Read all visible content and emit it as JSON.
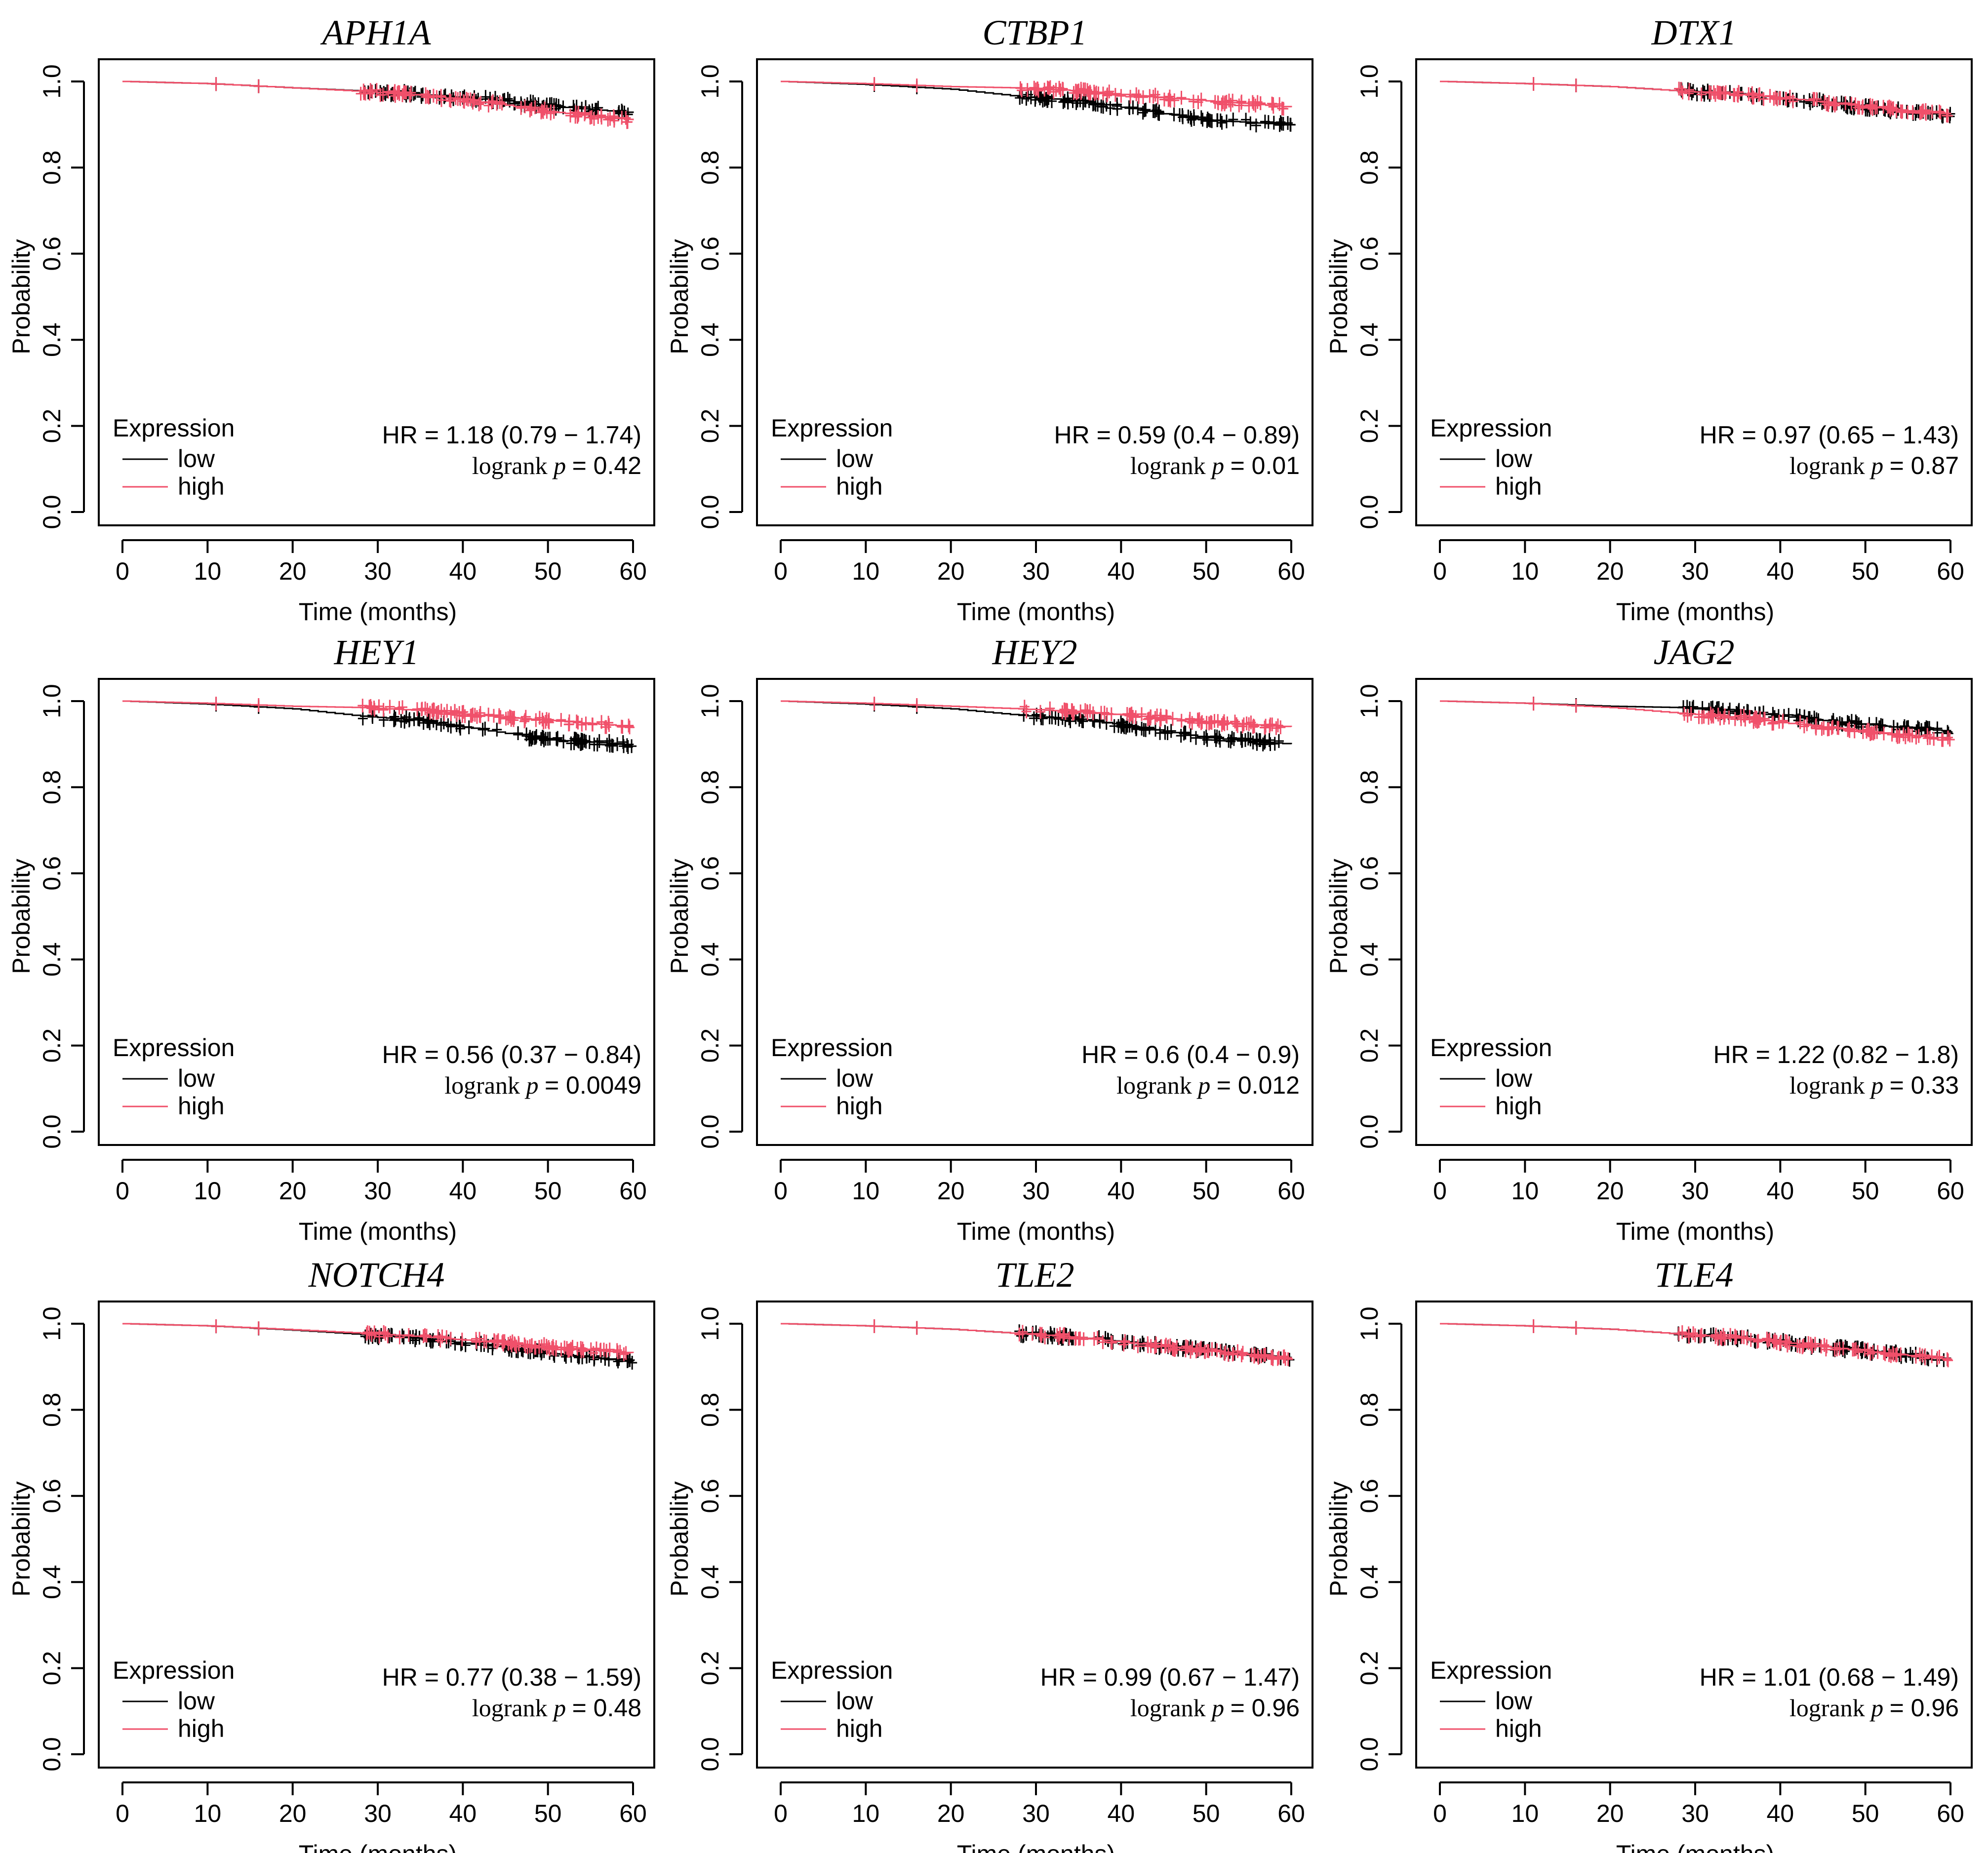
{
  "figure": {
    "colors": {
      "low": "#000000",
      "high": "#f0506a",
      "frame": "#000000",
      "background": "#ffffff"
    }
  },
  "chart_data": [
    {
      "type": "line",
      "title": "APH1A",
      "xlabel": "Time (months)",
      "ylabel": "Probability",
      "xlim": [
        0,
        60
      ],
      "ylim": [
        0,
        1
      ],
      "xticks": [
        "0",
        "10",
        "20",
        "30",
        "40",
        "50",
        "60"
      ],
      "yticks": [
        "0.0",
        "0.2",
        "0.4",
        "0.6",
        "0.8",
        "1.0"
      ],
      "legend": {
        "title": "Expression",
        "entries": [
          "low",
          "high"
        ],
        "position": "bottom-left"
      },
      "stats": {
        "hr_label": "HR = 1.18 (0.79 − 1.74)",
        "logrank_word": "logrank",
        "p_symbol": "p",
        "p_value_text": "= 0.42"
      },
      "series": [
        {
          "name": "low",
          "x": [
            0,
            10,
            20,
            28,
            35,
            40,
            45,
            50,
            55,
            60
          ],
          "values": [
            1.0,
            0.995,
            0.985,
            0.978,
            0.97,
            0.962,
            0.955,
            0.943,
            0.935,
            0.927
          ]
        },
        {
          "name": "high",
          "x": [
            0,
            10,
            20,
            28,
            35,
            40,
            45,
            50,
            55,
            60
          ],
          "values": [
            1.0,
            0.995,
            0.985,
            0.977,
            0.968,
            0.957,
            0.945,
            0.93,
            0.92,
            0.91
          ]
        }
      ]
    },
    {
      "type": "line",
      "title": "CTBP1",
      "xlabel": "Time (months)",
      "ylabel": "Probability",
      "xlim": [
        0,
        60
      ],
      "ylim": [
        0,
        1
      ],
      "xticks": [
        "0",
        "10",
        "20",
        "30",
        "40",
        "50",
        "60"
      ],
      "yticks": [
        "0.0",
        "0.2",
        "0.4",
        "0.6",
        "0.8",
        "1.0"
      ],
      "legend": {
        "title": "Expression",
        "entries": [
          "low",
          "high"
        ],
        "position": "bottom-left"
      },
      "stats": {
        "hr_label": "HR = 0.59 (0.4 − 0.89)",
        "logrank_word": "logrank",
        "p_symbol": "p",
        "p_value_text": "= 0.01"
      },
      "series": [
        {
          "name": "low",
          "x": [
            0,
            10,
            20,
            28,
            35,
            40,
            45,
            50,
            55,
            60
          ],
          "values": [
            1.0,
            0.993,
            0.982,
            0.965,
            0.955,
            0.94,
            0.925,
            0.91,
            0.905,
            0.898
          ]
        },
        {
          "name": "high",
          "x": [
            0,
            10,
            20,
            28,
            35,
            40,
            45,
            50,
            55,
            60
          ],
          "values": [
            1.0,
            0.995,
            0.988,
            0.985,
            0.978,
            0.97,
            0.962,
            0.955,
            0.948,
            0.94
          ]
        }
      ]
    },
    {
      "type": "line",
      "title": "DTX1",
      "xlabel": "Time (months)",
      "ylabel": "Probability",
      "xlim": [
        0,
        60
      ],
      "ylim": [
        0,
        1
      ],
      "xticks": [
        "0",
        "10",
        "20",
        "30",
        "40",
        "50",
        "60"
      ],
      "yticks": [
        "0.0",
        "0.2",
        "0.4",
        "0.6",
        "0.8",
        "1.0"
      ],
      "legend": {
        "title": "Expression",
        "entries": [
          "low",
          "high"
        ],
        "position": "bottom-left"
      },
      "stats": {
        "hr_label": "HR = 0.97 (0.65 − 1.43)",
        "logrank_word": "logrank",
        "p_symbol": "p",
        "p_value_text": "= 0.87"
      },
      "series": [
        {
          "name": "low",
          "x": [
            0,
            10,
            20,
            28,
            35,
            40,
            45,
            50,
            55,
            60
          ],
          "values": [
            1.0,
            0.995,
            0.988,
            0.978,
            0.97,
            0.962,
            0.952,
            0.94,
            0.93,
            0.922
          ]
        },
        {
          "name": "high",
          "x": [
            0,
            10,
            20,
            28,
            35,
            40,
            45,
            50,
            55,
            60
          ],
          "values": [
            1.0,
            0.995,
            0.988,
            0.978,
            0.97,
            0.962,
            0.952,
            0.941,
            0.932,
            0.924
          ]
        }
      ]
    },
    {
      "type": "line",
      "title": "HEY1",
      "xlabel": "Time (months)",
      "ylabel": "Probability",
      "xlim": [
        0,
        60
      ],
      "ylim": [
        0,
        1
      ],
      "xticks": [
        "0",
        "10",
        "20",
        "30",
        "40",
        "50",
        "60"
      ],
      "yticks": [
        "0.0",
        "0.2",
        "0.4",
        "0.6",
        "0.8",
        "1.0"
      ],
      "legend": {
        "title": "Expression",
        "entries": [
          "low",
          "high"
        ],
        "position": "bottom-left"
      },
      "stats": {
        "hr_label": "HR = 0.56 (0.37 − 0.84)",
        "logrank_word": "logrank",
        "p_symbol": "p",
        "p_value_text": "= 0.0049"
      },
      "series": [
        {
          "name": "low",
          "x": [
            0,
            10,
            20,
            28,
            35,
            40,
            45,
            50,
            55,
            60
          ],
          "values": [
            1.0,
            0.993,
            0.982,
            0.965,
            0.955,
            0.94,
            0.925,
            0.91,
            0.905,
            0.898
          ]
        },
        {
          "name": "high",
          "x": [
            0,
            10,
            20,
            28,
            35,
            40,
            45,
            50,
            55,
            60
          ],
          "values": [
            1.0,
            0.995,
            0.988,
            0.985,
            0.978,
            0.97,
            0.962,
            0.955,
            0.948,
            0.94
          ]
        }
      ]
    },
    {
      "type": "line",
      "title": "HEY2",
      "xlabel": "Time (months)",
      "ylabel": "Probability",
      "xlim": [
        0,
        60
      ],
      "ylim": [
        0,
        1
      ],
      "xticks": [
        "0",
        "10",
        "20",
        "30",
        "40",
        "50",
        "60"
      ],
      "yticks": [
        "0.0",
        "0.2",
        "0.4",
        "0.6",
        "0.8",
        "1.0"
      ],
      "legend": {
        "title": "Expression",
        "entries": [
          "low",
          "high"
        ],
        "position": "bottom-left"
      },
      "stats": {
        "hr_label": "HR = 0.6 (0.4 − 0.9)",
        "logrank_word": "logrank",
        "p_symbol": "p",
        "p_value_text": "= 0.012"
      },
      "series": [
        {
          "name": "low",
          "x": [
            0,
            10,
            20,
            28,
            35,
            40,
            45,
            50,
            55,
            60
          ],
          "values": [
            1.0,
            0.993,
            0.982,
            0.967,
            0.958,
            0.945,
            0.93,
            0.915,
            0.907,
            0.9
          ]
        },
        {
          "name": "high",
          "x": [
            0,
            10,
            20,
            28,
            35,
            40,
            45,
            50,
            55,
            60
          ],
          "values": [
            1.0,
            0.995,
            0.988,
            0.982,
            0.975,
            0.968,
            0.96,
            0.952,
            0.946,
            0.94
          ]
        }
      ]
    },
    {
      "type": "line",
      "title": "JAG2",
      "xlabel": "Time (months)",
      "ylabel": "Probability",
      "xlim": [
        0,
        60
      ],
      "ylim": [
        0,
        1
      ],
      "xticks": [
        "0",
        "10",
        "20",
        "30",
        "40",
        "50",
        "60"
      ],
      "yticks": [
        "0.0",
        "0.2",
        "0.4",
        "0.6",
        "0.8",
        "1.0"
      ],
      "legend": {
        "title": "Expression",
        "entries": [
          "low",
          "high"
        ],
        "position": "bottom-left"
      },
      "stats": {
        "hr_label": "HR = 1.22 (0.82 − 1.8)",
        "logrank_word": "logrank",
        "p_symbol": "p",
        "p_value_text": "= 0.33"
      },
      "series": [
        {
          "name": "low",
          "x": [
            0,
            10,
            20,
            28,
            35,
            40,
            45,
            50,
            55,
            60
          ],
          "values": [
            1.0,
            0.995,
            0.988,
            0.985,
            0.975,
            0.965,
            0.955,
            0.945,
            0.937,
            0.93
          ]
        },
        {
          "name": "high",
          "x": [
            0,
            10,
            20,
            28,
            35,
            40,
            45,
            50,
            55,
            60
          ],
          "values": [
            1.0,
            0.995,
            0.985,
            0.972,
            0.962,
            0.95,
            0.94,
            0.93,
            0.92,
            0.912
          ]
        }
      ]
    },
    {
      "type": "line",
      "title": "NOTCH4",
      "xlabel": "Time (months)",
      "ylabel": "Probability",
      "xlim": [
        0,
        60
      ],
      "ylim": [
        0,
        1
      ],
      "xticks": [
        "0",
        "10",
        "20",
        "30",
        "40",
        "50",
        "60"
      ],
      "yticks": [
        "0.0",
        "0.2",
        "0.4",
        "0.6",
        "0.8",
        "1.0"
      ],
      "legend": {
        "title": "Expression",
        "entries": [
          "low",
          "high"
        ],
        "position": "bottom-left"
      },
      "stats": {
        "hr_label": "HR = 0.77 (0.38 − 1.59)",
        "logrank_word": "logrank",
        "p_symbol": "p",
        "p_value_text": "= 0.48"
      },
      "series": [
        {
          "name": "low",
          "x": [
            0,
            10,
            20,
            28,
            35,
            40,
            45,
            50,
            55,
            60
          ],
          "values": [
            1.0,
            0.995,
            0.985,
            0.975,
            0.965,
            0.955,
            0.945,
            0.932,
            0.922,
            0.912
          ]
        },
        {
          "name": "high",
          "x": [
            0,
            10,
            20,
            28,
            35,
            40,
            45,
            50,
            55,
            60
          ],
          "values": [
            1.0,
            0.995,
            0.986,
            0.978,
            0.97,
            0.962,
            0.955,
            0.946,
            0.938,
            0.932
          ]
        }
      ]
    },
    {
      "type": "line",
      "title": "TLE2",
      "xlabel": "Time (months)",
      "ylabel": "Probability",
      "xlim": [
        0,
        60
      ],
      "ylim": [
        0,
        1
      ],
      "xticks": [
        "0",
        "10",
        "20",
        "30",
        "40",
        "50",
        "60"
      ],
      "yticks": [
        "0.0",
        "0.2",
        "0.4",
        "0.6",
        "0.8",
        "1.0"
      ],
      "legend": {
        "title": "Expression",
        "entries": [
          "low",
          "high"
        ],
        "position": "bottom-left"
      },
      "stats": {
        "hr_label": "HR = 0.99 (0.67 − 1.47)",
        "logrank_word": "logrank",
        "p_symbol": "p",
        "p_value_text": "= 0.96"
      },
      "series": [
        {
          "name": "low",
          "x": [
            0,
            10,
            20,
            28,
            35,
            40,
            45,
            50,
            55,
            60
          ],
          "values": [
            1.0,
            0.995,
            0.987,
            0.977,
            0.968,
            0.958,
            0.948,
            0.938,
            0.929,
            0.92
          ]
        },
        {
          "name": "high",
          "x": [
            0,
            10,
            20,
            28,
            35,
            40,
            45,
            50,
            55,
            60
          ],
          "values": [
            1.0,
            0.995,
            0.987,
            0.977,
            0.968,
            0.957,
            0.947,
            0.937,
            0.928,
            0.919
          ]
        }
      ]
    },
    {
      "type": "line",
      "title": "TLE4",
      "xlabel": "Time (months)",
      "ylabel": "Probability",
      "xlim": [
        0,
        60
      ],
      "ylim": [
        0,
        1
      ],
      "xticks": [
        "0",
        "10",
        "20",
        "30",
        "40",
        "50",
        "60"
      ],
      "yticks": [
        "0.0",
        "0.2",
        "0.4",
        "0.6",
        "0.8",
        "1.0"
      ],
      "legend": {
        "title": "Expression",
        "entries": [
          "low",
          "high"
        ],
        "position": "bottom-left"
      },
      "stats": {
        "hr_label": "HR = 1.01 (0.68 − 1.49)",
        "logrank_word": "logrank",
        "p_symbol": "p",
        "p_value_text": "= 0.96"
      },
      "series": [
        {
          "name": "low",
          "x": [
            0,
            10,
            20,
            28,
            35,
            40,
            45,
            50,
            55,
            60
          ],
          "values": [
            1.0,
            0.995,
            0.987,
            0.976,
            0.967,
            0.957,
            0.947,
            0.937,
            0.927,
            0.918
          ]
        },
        {
          "name": "high",
          "x": [
            0,
            10,
            20,
            28,
            35,
            40,
            45,
            50,
            55,
            60
          ],
          "values": [
            1.0,
            0.995,
            0.987,
            0.976,
            0.967,
            0.957,
            0.946,
            0.936,
            0.926,
            0.917
          ]
        }
      ]
    }
  ]
}
